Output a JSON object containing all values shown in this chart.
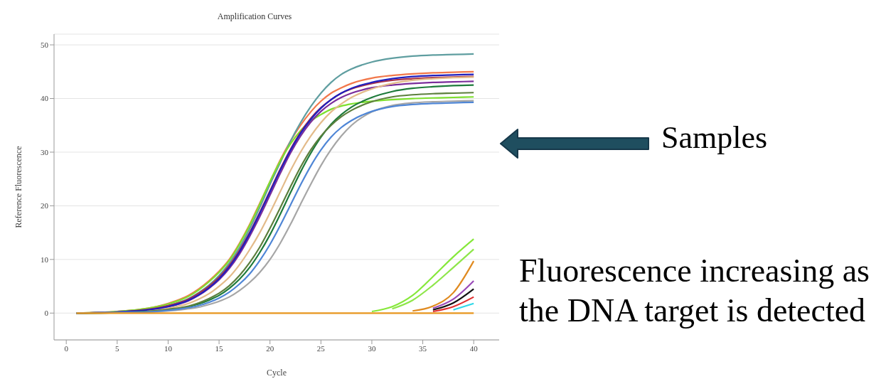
{
  "chart_data": {
    "type": "line",
    "title": "Amplification Curves",
    "xlabel": "Cycle",
    "ylabel": "Reference Fluorescence",
    "annotations": [
      "Samples",
      "Fluorescence increasing as the DNA target is detected"
    ],
    "xlim": [
      -1.2,
      42.5
    ],
    "xticks": [
      0,
      5,
      10,
      15,
      20,
      25,
      30,
      35,
      40
    ],
    "ylim": [
      -5,
      52
    ],
    "yticks": [
      0,
      10,
      20,
      30,
      40,
      50
    ],
    "grid": "y",
    "x": [
      1,
      5,
      8,
      10,
      12,
      13,
      14,
      15,
      16,
      17,
      18,
      19,
      20,
      21,
      22,
      23,
      24,
      25,
      26,
      27,
      28,
      30,
      32,
      34,
      36,
      38,
      40
    ],
    "series": [
      {
        "color": "#f2784b",
        "values": [
          0,
          0.3,
          0.9,
          1.8,
          3.3,
          4.5,
          6,
          7.8,
          10,
          13,
          16.5,
          20.5,
          24.5,
          28.5,
          32,
          35,
          37.5,
          39.5,
          41,
          42,
          42.8,
          43.8,
          44.3,
          44.6,
          44.8,
          44.9,
          45
        ]
      },
      {
        "color": "#5f9ea0",
        "values": [
          0,
          0.2,
          0.7,
          1.4,
          2.7,
          3.8,
          5.2,
          7,
          9.3,
          12.2,
          15.7,
          19.7,
          24,
          28,
          32,
          35.5,
          38.5,
          41,
          43,
          44.5,
          45.5,
          46.8,
          47.5,
          47.9,
          48.1,
          48.2,
          48.3
        ]
      },
      {
        "color": "#7ee02e",
        "values": [
          0,
          0.3,
          0.9,
          1.7,
          3.1,
          4.3,
          5.8,
          7.6,
          9.8,
          12.8,
          16.3,
          20.3,
          24.5,
          28.3,
          31.5,
          34,
          35.8,
          37,
          38,
          38.6,
          39,
          39.5,
          39.8,
          40,
          40.1,
          40.2,
          40.3
        ]
      },
      {
        "color": "#a8324a",
        "values": [
          0,
          0.2,
          0.7,
          1.4,
          2.6,
          3.7,
          5,
          6.7,
          8.9,
          11.7,
          15,
          18.8,
          22.8,
          26.8,
          30.5,
          33.7,
          36.3,
          38.3,
          39.8,
          41,
          41.8,
          42.8,
          43.4,
          43.7,
          43.9,
          44,
          44.1
        ]
      },
      {
        "color": "#7b2d9b",
        "values": [
          0,
          0.2,
          0.6,
          1.2,
          2.3,
          3.3,
          4.6,
          6.2,
          8.3,
          11,
          14.3,
          18,
          22,
          26,
          29.8,
          33,
          35.6,
          37.6,
          39.1,
          40.2,
          41,
          42,
          42.5,
          42.8,
          43,
          43.1,
          43.2
        ]
      },
      {
        "color": "#e3bb8a",
        "values": [
          0,
          0.1,
          0.4,
          0.9,
          1.8,
          2.6,
          3.6,
          5,
          6.7,
          9,
          11.8,
          15,
          18.7,
          22.6,
          26.5,
          30,
          33,
          35.5,
          37.5,
          39,
          40.2,
          41.8,
          42.8,
          43.4,
          43.7,
          43.9,
          44
        ]
      },
      {
        "color": "#1f1fbf",
        "values": [
          0,
          0.2,
          0.6,
          1.2,
          2.4,
          3.4,
          4.7,
          6.4,
          8.6,
          11.4,
          14.8,
          18.6,
          22.6,
          26.6,
          30.3,
          33.5,
          36.1,
          38.2,
          39.8,
          41,
          41.9,
          43,
          43.7,
          44.1,
          44.3,
          44.4,
          44.5
        ]
      },
      {
        "color": "#1e7b3b",
        "values": [
          0,
          0.1,
          0.3,
          0.6,
          1.2,
          1.7,
          2.4,
          3.3,
          4.6,
          6.3,
          8.5,
          11.3,
          14.6,
          18.4,
          22.4,
          26.3,
          29.8,
          32.8,
          35.2,
          37,
          38.4,
          40.2,
          41.3,
          41.9,
          42.2,
          42.4,
          42.5
        ]
      },
      {
        "color": "#5c7f3c",
        "values": [
          0,
          0.1,
          0.3,
          0.7,
          1.3,
          1.9,
          2.7,
          3.7,
          5.1,
          7,
          9.4,
          12.3,
          15.8,
          19.6,
          23.5,
          27.2,
          30.4,
          33,
          35,
          36.6,
          37.8,
          39.4,
          40.3,
          40.7,
          40.9,
          41,
          41.1
        ]
      },
      {
        "color": "#a6a6a6",
        "values": [
          0,
          0.1,
          0.2,
          0.4,
          0.8,
          1.1,
          1.6,
          2.2,
          3,
          4.2,
          5.7,
          7.6,
          10,
          13,
          16.5,
          20.3,
          24,
          27.5,
          30.5,
          33,
          35,
          37.5,
          38.7,
          39.2,
          39.4,
          39.5,
          39.6
        ]
      },
      {
        "color": "#4f86d6",
        "values": [
          0,
          0.1,
          0.2,
          0.5,
          1,
          1.4,
          2,
          2.8,
          3.9,
          5.4,
          7.3,
          9.8,
          12.8,
          16.3,
          20.1,
          23.9,
          27.4,
          30.4,
          32.8,
          34.6,
          35.9,
          37.6,
          38.5,
          38.9,
          39.1,
          39.2,
          39.3
        ]
      },
      {
        "color": "#86e83a",
        "values": [
          null,
          null,
          null,
          null,
          null,
          null,
          null,
          null,
          null,
          null,
          null,
          null,
          null,
          null,
          null,
          null,
          null,
          null,
          null,
          null,
          null,
          0.3,
          1.2,
          3.3,
          6.8,
          10.5,
          13.8
        ]
      },
      {
        "color": "#8ee64a",
        "values": [
          null,
          null,
          null,
          null,
          null,
          null,
          null,
          null,
          null,
          null,
          null,
          null,
          null,
          null,
          null,
          null,
          null,
          null,
          null,
          null,
          null,
          null,
          0.8,
          2.4,
          5.2,
          8.5,
          11.9
        ]
      },
      {
        "color": "#e08a20",
        "values": [
          null,
          null,
          null,
          null,
          null,
          null,
          null,
          null,
          null,
          null,
          null,
          null,
          null,
          null,
          null,
          null,
          null,
          null,
          null,
          null,
          null,
          null,
          null,
          0.4,
          1.3,
          3.8,
          9.7
        ]
      },
      {
        "color": "#9a4ab8",
        "values": [
          null,
          null,
          null,
          null,
          null,
          null,
          null,
          null,
          null,
          null,
          null,
          null,
          null,
          null,
          null,
          null,
          null,
          null,
          null,
          null,
          null,
          null,
          null,
          null,
          0.9,
          2.6,
          6
        ]
      },
      {
        "color": "#111111",
        "values": [
          null,
          null,
          null,
          null,
          null,
          null,
          null,
          null,
          null,
          null,
          null,
          null,
          null,
          null,
          null,
          null,
          null,
          null,
          null,
          null,
          null,
          null,
          null,
          null,
          0.6,
          1.9,
          4.5
        ]
      },
      {
        "color": "#e03030",
        "values": [
          null,
          null,
          null,
          null,
          null,
          null,
          null,
          null,
          null,
          null,
          null,
          null,
          null,
          null,
          null,
          null,
          null,
          null,
          null,
          null,
          null,
          null,
          null,
          null,
          0.3,
          1.2,
          3
        ]
      },
      {
        "color": "#30d8e8",
        "values": [
          null,
          null,
          null,
          null,
          null,
          null,
          null,
          null,
          null,
          null,
          null,
          null,
          null,
          null,
          null,
          null,
          null,
          null,
          null,
          null,
          null,
          null,
          null,
          null,
          null,
          0.6,
          1.8
        ]
      },
      {
        "color": "#e8961e",
        "values": [
          0,
          0,
          0,
          0,
          0,
          0,
          0,
          0,
          0,
          0,
          0,
          0,
          0,
          0,
          0,
          0,
          0,
          0,
          0,
          0,
          0,
          0,
          0,
          0,
          0,
          0,
          0
        ]
      }
    ]
  }
}
